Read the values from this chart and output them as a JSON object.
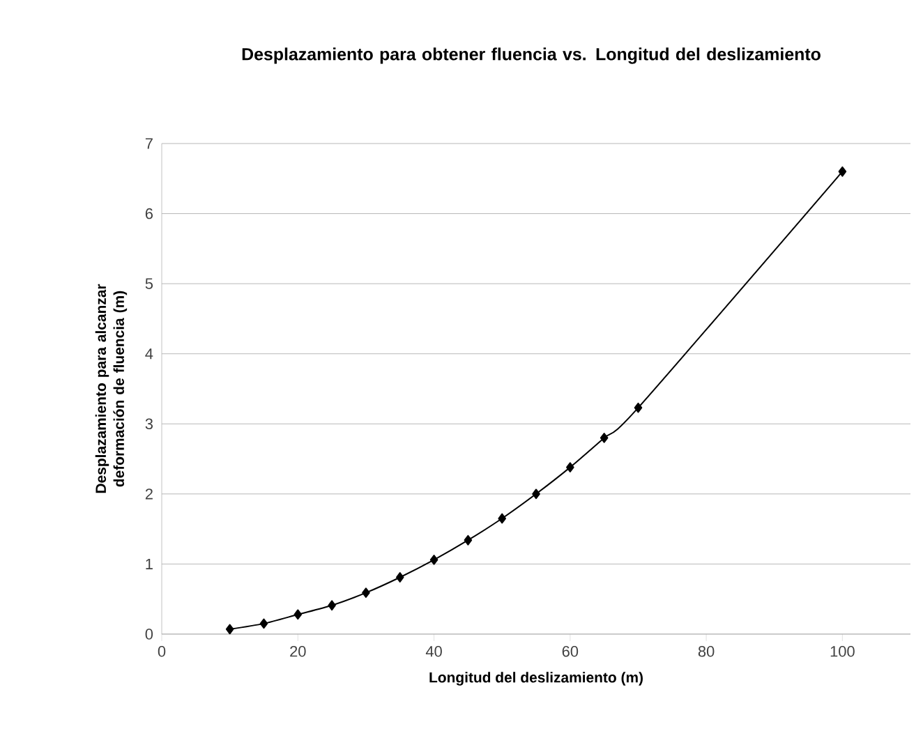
{
  "chart_data": {
    "type": "line",
    "title": "Desplazamiento para obtener fluencia vs. Longitud del deslizamiento",
    "xlabel": "Longitud  del deslizamiento (m)",
    "ylabel": "Desplazamiento  para alcanzar deformación de fluencia (m)",
    "x": [
      10,
      15,
      20,
      25,
      30,
      35,
      40,
      45,
      50,
      55,
      60,
      65,
      70,
      100
    ],
    "series": [
      {
        "color": "#000000",
        "values": [
          0.07,
          0.15,
          0.28,
          0.41,
          0.59,
          0.81,
          1.06,
          1.34,
          1.65,
          2.0,
          2.38,
          2.8,
          3.23,
          6.6
        ]
      }
    ],
    "xlim": [
      0,
      110
    ],
    "ylim": [
      0,
      7
    ],
    "xticks": [
      0,
      20,
      40,
      60,
      80,
      100
    ],
    "yticks": [
      0,
      1,
      2,
      3,
      4,
      5,
      6,
      7
    ],
    "grid": "y",
    "marker": "diamond",
    "line_style": "solid"
  }
}
